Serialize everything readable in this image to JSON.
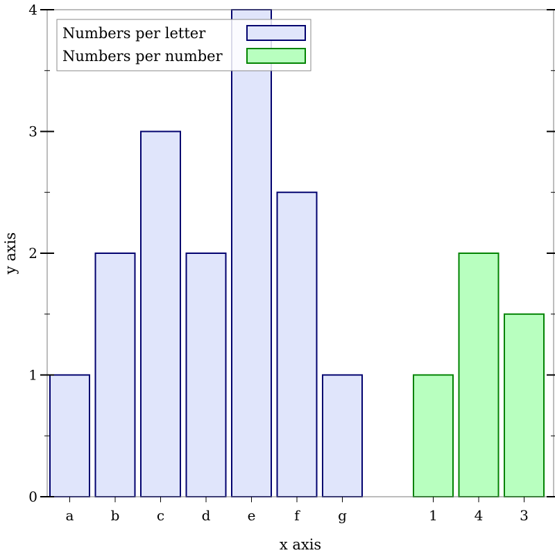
{
  "chart_data": {
    "type": "bar",
    "title": "",
    "xlabel": "x axis",
    "ylabel": "y axis",
    "ylim": [
      0,
      4
    ],
    "yticks": [
      "0",
      "1",
      "2",
      "3",
      "4"
    ],
    "grid": false,
    "legend_position": "top-left",
    "series": [
      {
        "name": "Numbers per letter",
        "fill": "#e0e5fb",
        "stroke": "#00006e",
        "categories": [
          "a",
          "b",
          "c",
          "d",
          "e",
          "f",
          "g"
        ],
        "values": [
          1,
          2,
          3,
          2,
          4,
          2.5,
          1
        ]
      },
      {
        "name": "Numbers per number",
        "fill": "#b8ffbf",
        "stroke": "#008200",
        "categories": [
          "1",
          "4",
          "3"
        ],
        "values": [
          1,
          2,
          1.5
        ]
      }
    ]
  }
}
